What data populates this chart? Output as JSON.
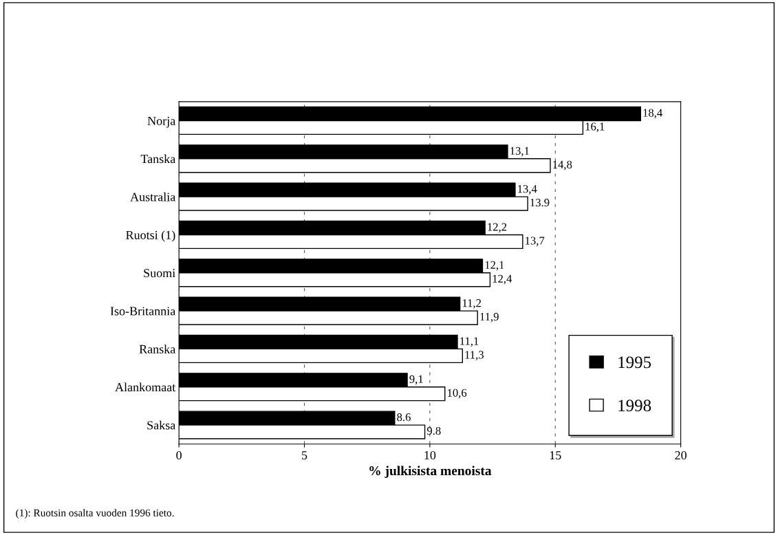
{
  "chart_data": {
    "type": "bar",
    "orientation": "horizontal",
    "xlabel": "% julkisista menoista",
    "categories": [
      "Norja",
      "Tanska",
      "Australia",
      "Ruotsi (1)",
      "Suomi",
      "Iso-Britannia",
      "Ranska",
      "Alankomaat",
      "Saksa"
    ],
    "series": [
      {
        "name": "1995",
        "color": "#000000",
        "values": [
          18.4,
          13.1,
          13.4,
          12.2,
          12.1,
          11.2,
          11.1,
          9.1,
          8.6
        ],
        "value_labels": [
          "18,4",
          "13,1",
          "13,4",
          "12,2",
          "12,1",
          "11,2",
          "11,1",
          "9,1",
          "8.6"
        ]
      },
      {
        "name": "1998",
        "color": "#ffffff",
        "values": [
          16.1,
          14.8,
          13.9,
          13.7,
          12.4,
          11.9,
          11.3,
          10.6,
          9.8
        ],
        "value_labels": [
          "16,1",
          "14,8",
          "13.9",
          "13,7",
          "12,4",
          "11,9",
          "11,3",
          "10,6",
          "9.8"
        ]
      }
    ],
    "xlim": [
      0,
      20
    ],
    "xticks": [
      0,
      5,
      10,
      15,
      20
    ],
    "grid": "x",
    "legend": "bottom right",
    "annotations": [
      "(1): Ruotsin osalta vuoden 1996 tieto."
    ]
  }
}
